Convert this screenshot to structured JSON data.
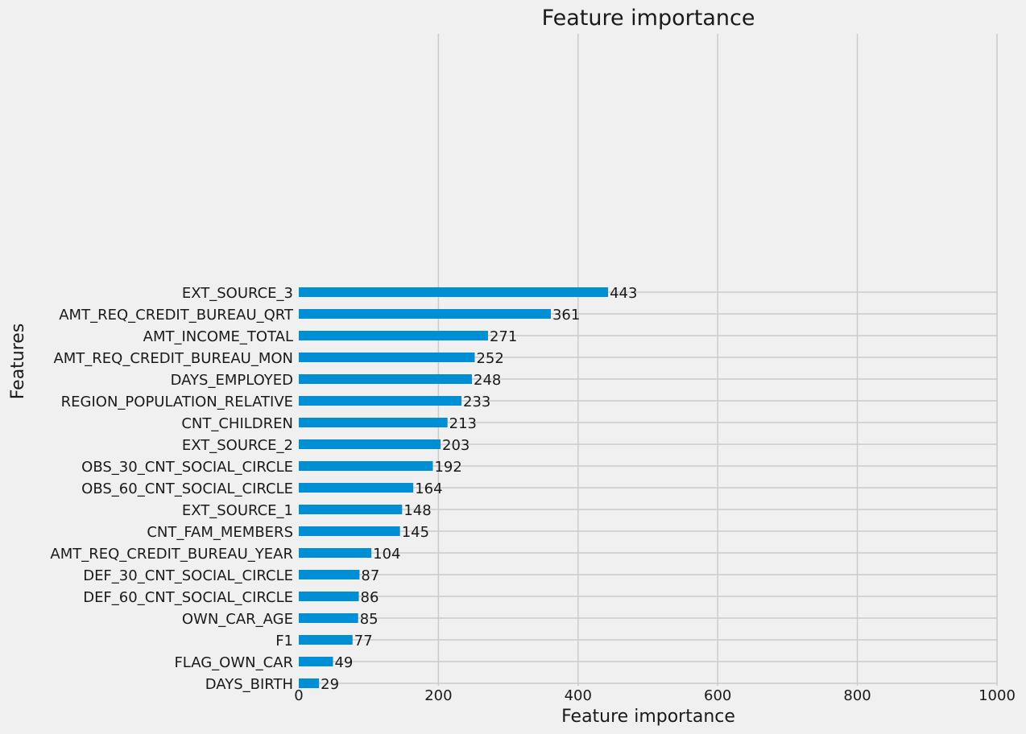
{
  "chart_data": {
    "type": "bar",
    "orientation": "horizontal",
    "title": "Feature importance",
    "xlabel": "Feature importance",
    "ylabel": "Features",
    "xlim": [
      0,
      1000
    ],
    "xticks": [
      "0",
      "200",
      "400",
      "600",
      "800",
      "1000"
    ],
    "grid": true,
    "categories": [
      "EXT_SOURCE_3",
      "AMT_REQ_CREDIT_BUREAU_QRT",
      "AMT_INCOME_TOTAL",
      "AMT_REQ_CREDIT_BUREAU_MON",
      "DAYS_EMPLOYED",
      "REGION_POPULATION_RELATIVE",
      "CNT_CHILDREN",
      "EXT_SOURCE_2",
      "OBS_30_CNT_SOCIAL_CIRCLE",
      "OBS_60_CNT_SOCIAL_CIRCLE",
      "EXT_SOURCE_1",
      "CNT_FAM_MEMBERS",
      "AMT_REQ_CREDIT_BUREAU_YEAR",
      "DEF_30_CNT_SOCIAL_CIRCLE",
      "DEF_60_CNT_SOCIAL_CIRCLE",
      "OWN_CAR_AGE",
      "F1",
      "FLAG_OWN_CAR",
      "DAYS_BIRTH"
    ],
    "values": [
      443,
      361,
      271,
      252,
      248,
      233,
      213,
      203,
      192,
      164,
      148,
      145,
      104,
      87,
      86,
      85,
      77,
      49,
      29
    ],
    "data_labels": [
      "443",
      "361",
      "271",
      "252",
      "248",
      "233",
      "213",
      "203",
      "192",
      "164",
      "148",
      "145",
      "104",
      "87",
      "86",
      "85",
      "77",
      "49",
      "29"
    ],
    "colors": {
      "bar": "#008fd5",
      "grid": "#cbcbcb",
      "background": "#f0f0f0",
      "text": "#1a1a1a"
    }
  }
}
